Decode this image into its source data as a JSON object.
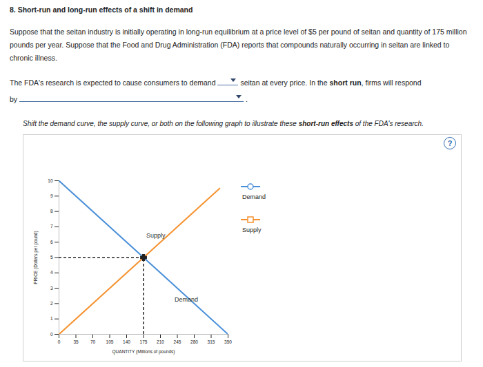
{
  "page": {
    "title": "8. Short-run and long-run effects of a shift in demand",
    "paragraph": "Suppose that the seitan industry is initially operating in long-run equilibrium at a price level of $5 per pound of seitan and quantity of 175 million pounds per year. Suppose that the Food and Drug Administration (FDA) reports that compounds naturally occurring in seitan are linked to chronic illness.",
    "question": [
      {
        "text": "The FDA's research is expected to cause consumers to demand"
      },
      {
        "dropdown": true
      },
      {
        "text": "seitan at every price. In the "
      },
      {
        "text": "short run",
        "bold": true
      },
      {
        "text": ", firms will respond by"
      },
      {
        "dropdown": true
      },
      {
        "text": "."
      }
    ],
    "instruction": [
      {
        "text": "Shift the demand curve, the supply curve, or both on the following graph to illustrate these "
      },
      {
        "text": "short-run effects",
        "bold": true
      },
      {
        "text": " of the FDA's research."
      }
    ],
    "help": "?"
  },
  "chart_data": {
    "type": "line",
    "x_label": "QUANTITY (Millions of pounds)",
    "y_label": "PRICE (Dollars per pound)",
    "xlim": [
      0,
      350
    ],
    "xticks": [
      0,
      35,
      70,
      105,
      140,
      175,
      210,
      245,
      280,
      315,
      350
    ],
    "ylim": [
      0,
      10
    ],
    "yticks": [
      0,
      1,
      2,
      3,
      4,
      5,
      6,
      7,
      8,
      9,
      10
    ],
    "series": [
      {
        "name": "Demand",
        "color": "#4a90d9",
        "marker": "circle",
        "x": [
          0,
          350
        ],
        "values": [
          10,
          0
        ]
      },
      {
        "name": "Supply",
        "color": "#f5922f",
        "marker": "square",
        "x": [
          0,
          332.5
        ],
        "values": [
          0,
          9.5
        ]
      }
    ],
    "equilibrium": {
      "x": 175,
      "y": 5,
      "line_style": "dashed",
      "marker": "cross"
    },
    "legend": "right",
    "grid": false
  }
}
